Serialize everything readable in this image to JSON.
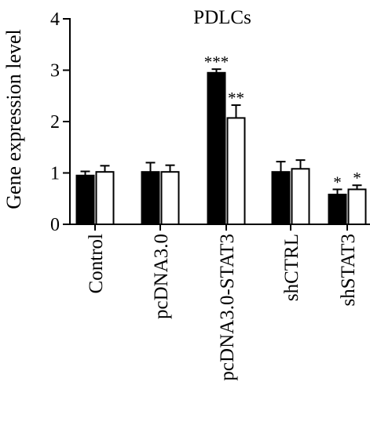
{
  "chart_data": {
    "type": "bar",
    "title": "PDLCs",
    "ylabel": "Gene expression level",
    "xlabel": "",
    "ylim": [
      0,
      4
    ],
    "yticks": [
      "0",
      "1",
      "2",
      "3",
      "4"
    ],
    "categories": [
      "Control",
      "pcDNA3.0",
      "pcDNA3.0-STAT3",
      "shCTRL",
      "shSTAT3"
    ],
    "series": [
      {
        "fill": "#000000",
        "values": [
          0.95,
          1.02,
          2.95,
          1.02,
          0.58
        ],
        "errors": [
          0.08,
          0.18,
          0.07,
          0.2,
          0.1
        ],
        "significance": [
          "",
          "",
          "***",
          "",
          "*"
        ]
      },
      {
        "fill": "#ffffff",
        "values": [
          1.02,
          1.02,
          2.07,
          1.08,
          0.68
        ],
        "errors": [
          0.12,
          0.13,
          0.25,
          0.17,
          0.08
        ],
        "significance": [
          "",
          "",
          "**",
          "",
          "*"
        ]
      }
    ],
    "grid": false,
    "legend": "none"
  }
}
